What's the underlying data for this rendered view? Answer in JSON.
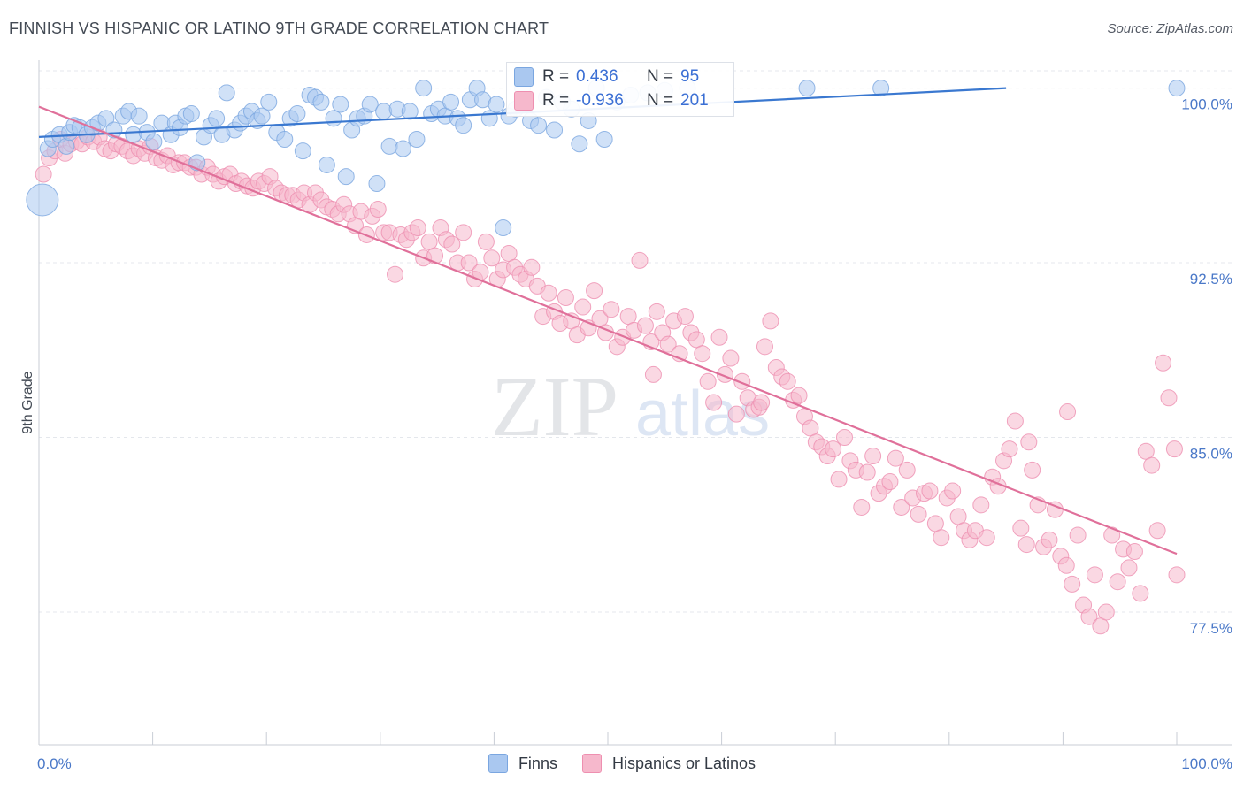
{
  "header": {
    "title": "FINNISH VS HISPANIC OR LATINO 9TH GRADE CORRELATION CHART",
    "source": "Source: ZipAtlas.com"
  },
  "watermark": {
    "zip": "ZIP",
    "atlas": "atlas"
  },
  "colors": {
    "finns_fill": "#aac8f0",
    "finns_stroke": "#7aa6e0",
    "finns_line": "#3a78d0",
    "hisp_fill": "#f6b8cc",
    "hisp_stroke": "#ee8fb0",
    "hisp_line": "#e0709a",
    "tick_text": "#4a78c8",
    "grid": "#e4e7ec"
  },
  "legend": {
    "rows": [
      {
        "r_label": "R =",
        "r_value": "0.436",
        "n_label": "N =",
        "n_value": "95"
      },
      {
        "r_label": "R =",
        "r_value": "-0.936",
        "n_label": "N =",
        "n_value": "201"
      }
    ]
  },
  "bottom_legend": [
    "Finns",
    "Hispanics or Latinos"
  ],
  "chart_data": {
    "type": "scatter",
    "ylabel": "9th Grade",
    "x_ticks": [
      "0.0%",
      "100.0%"
    ],
    "y_ticks": [
      "100.0%",
      "92.5%",
      "85.0%",
      "77.5%"
    ],
    "xlim": [
      0,
      100
    ],
    "ylim": [
      71.8,
      101.2
    ],
    "grid": true,
    "legend_position": "top-center",
    "series": [
      {
        "name": "Finns",
        "trend": {
          "x": [
            0,
            85
          ],
          "y": [
            97.9,
            100.0
          ]
        },
        "points": [
          [
            0.3,
            95.2,
            "L"
          ],
          [
            0.8,
            97.4
          ],
          [
            1.2,
            97.8
          ],
          [
            1.8,
            98.0
          ],
          [
            2.4,
            97.5
          ],
          [
            2.7,
            98.1
          ],
          [
            3.1,
            98.4
          ],
          [
            3.6,
            98.3
          ],
          [
            4.2,
            98.0
          ],
          [
            4.7,
            98.3
          ],
          [
            5.2,
            98.5
          ],
          [
            5.9,
            98.7
          ],
          [
            6.6,
            98.2
          ],
          [
            7.4,
            98.8
          ],
          [
            7.9,
            99.0
          ],
          [
            8.3,
            98.0
          ],
          [
            8.8,
            98.8
          ],
          [
            9.5,
            98.1
          ],
          [
            10.1,
            97.7
          ],
          [
            10.8,
            98.5
          ],
          [
            11.6,
            98.0
          ],
          [
            12.0,
            98.5
          ],
          [
            12.4,
            98.3
          ],
          [
            12.9,
            98.8
          ],
          [
            13.4,
            98.9
          ],
          [
            13.9,
            96.8
          ],
          [
            14.5,
            97.9
          ],
          [
            15.1,
            98.4
          ],
          [
            15.6,
            98.7
          ],
          [
            16.1,
            98.0
          ],
          [
            16.5,
            99.8
          ],
          [
            17.2,
            98.2
          ],
          [
            17.7,
            98.5
          ],
          [
            18.2,
            98.8
          ],
          [
            18.7,
            99.0
          ],
          [
            19.2,
            98.6
          ],
          [
            19.6,
            98.8
          ],
          [
            20.2,
            99.4
          ],
          [
            20.9,
            98.1
          ],
          [
            21.6,
            97.8
          ],
          [
            22.1,
            98.7
          ],
          [
            22.7,
            98.9
          ],
          [
            23.2,
            97.3
          ],
          [
            23.8,
            99.7
          ],
          [
            24.3,
            99.6
          ],
          [
            24.8,
            99.4
          ],
          [
            25.3,
            96.7
          ],
          [
            25.9,
            98.7
          ],
          [
            26.5,
            99.3
          ],
          [
            27.0,
            96.2
          ],
          [
            27.5,
            98.2
          ],
          [
            28.0,
            98.7
          ],
          [
            28.6,
            98.8
          ],
          [
            29.1,
            99.3
          ],
          [
            29.7,
            95.9
          ],
          [
            30.3,
            99.0
          ],
          [
            30.8,
            97.5
          ],
          [
            31.5,
            99.1
          ],
          [
            32.0,
            97.4
          ],
          [
            32.6,
            99.0
          ],
          [
            33.2,
            97.8
          ],
          [
            33.8,
            100.0
          ],
          [
            34.5,
            98.9
          ],
          [
            35.1,
            99.1
          ],
          [
            35.7,
            98.8
          ],
          [
            36.2,
            99.4
          ],
          [
            36.8,
            98.7
          ],
          [
            37.3,
            98.4
          ],
          [
            37.9,
            99.5
          ],
          [
            38.5,
            100.0
          ],
          [
            39.0,
            99.5
          ],
          [
            39.6,
            98.7
          ],
          [
            40.2,
            99.3
          ],
          [
            40.8,
            94.0
          ],
          [
            41.3,
            98.8
          ],
          [
            41.9,
            99.1
          ],
          [
            42.5,
            100.0
          ],
          [
            43.2,
            98.6
          ],
          [
            43.9,
            98.4
          ],
          [
            44.6,
            99.6
          ],
          [
            45.3,
            98.2
          ],
          [
            46.0,
            99.4
          ],
          [
            46.8,
            99.1
          ],
          [
            47.5,
            97.6
          ],
          [
            48.3,
            98.6
          ],
          [
            49.0,
            100.0
          ],
          [
            49.7,
            97.8
          ],
          [
            50.8,
            99.4
          ],
          [
            52.0,
            99.7
          ],
          [
            53.5,
            99.8
          ],
          [
            55.0,
            99.9
          ],
          [
            57.0,
            100.0
          ],
          [
            67.5,
            100.0
          ],
          [
            74.0,
            100.0
          ],
          [
            100.0,
            100.0
          ]
        ]
      },
      {
        "name": "Hispanics or Latinos",
        "trend": {
          "x": [
            0,
            100
          ],
          "y": [
            99.2,
            80.0
          ]
        },
        "points": [
          [
            0.4,
            96.3
          ],
          [
            0.9,
            97.0
          ],
          [
            1.4,
            97.3
          ],
          [
            1.9,
            97.8
          ],
          [
            2.3,
            97.2
          ],
          [
            2.8,
            97.6
          ],
          [
            3.3,
            97.7
          ],
          [
            3.8,
            97.6
          ],
          [
            4.3,
            97.9
          ],
          [
            4.8,
            97.7
          ],
          [
            5.3,
            97.9
          ],
          [
            5.8,
            97.4
          ],
          [
            6.3,
            97.3
          ],
          [
            6.8,
            97.6
          ],
          [
            7.3,
            97.5
          ],
          [
            7.8,
            97.3
          ],
          [
            8.3,
            97.1
          ],
          [
            8.8,
            97.4
          ],
          [
            9.3,
            97.2
          ],
          [
            9.8,
            97.5
          ],
          [
            10.3,
            97.0
          ],
          [
            10.8,
            96.9
          ],
          [
            11.3,
            97.1
          ],
          [
            11.8,
            96.7
          ],
          [
            12.3,
            96.8
          ],
          [
            12.8,
            96.8
          ],
          [
            13.3,
            96.6
          ],
          [
            13.8,
            96.6
          ],
          [
            14.3,
            96.3
          ],
          [
            14.8,
            96.6
          ],
          [
            15.3,
            96.3
          ],
          [
            15.8,
            96.0
          ],
          [
            16.3,
            96.2
          ],
          [
            16.8,
            96.3
          ],
          [
            17.3,
            95.9
          ],
          [
            17.8,
            96.0
          ],
          [
            18.3,
            95.8
          ],
          [
            18.8,
            95.7
          ],
          [
            19.3,
            96.0
          ],
          [
            19.8,
            95.9
          ],
          [
            20.3,
            96.2
          ],
          [
            20.8,
            95.7
          ],
          [
            21.3,
            95.5
          ],
          [
            21.8,
            95.4
          ],
          [
            22.3,
            95.4
          ],
          [
            22.8,
            95.2
          ],
          [
            23.3,
            95.5
          ],
          [
            23.8,
            95.0
          ],
          [
            24.3,
            95.5
          ],
          [
            24.8,
            95.2
          ],
          [
            25.3,
            94.9
          ],
          [
            25.8,
            94.8
          ],
          [
            26.3,
            94.6
          ],
          [
            26.8,
            95.0
          ],
          [
            27.3,
            94.6
          ],
          [
            27.8,
            94.1
          ],
          [
            28.3,
            94.7
          ],
          [
            28.8,
            93.7
          ],
          [
            29.3,
            94.5
          ],
          [
            29.8,
            94.8
          ],
          [
            30.3,
            93.8
          ],
          [
            30.8,
            93.8
          ],
          [
            31.3,
            92.0
          ],
          [
            31.8,
            93.7
          ],
          [
            32.3,
            93.5
          ],
          [
            32.8,
            93.8
          ],
          [
            33.3,
            94.0
          ],
          [
            33.8,
            92.7
          ],
          [
            34.3,
            93.4
          ],
          [
            34.8,
            92.8
          ],
          [
            35.3,
            94.0
          ],
          [
            35.8,
            93.5
          ],
          [
            36.3,
            93.3
          ],
          [
            36.8,
            92.5
          ],
          [
            37.3,
            93.8
          ],
          [
            37.8,
            92.5
          ],
          [
            38.3,
            91.8
          ],
          [
            38.8,
            92.1
          ],
          [
            39.3,
            93.4
          ],
          [
            39.8,
            92.7
          ],
          [
            40.3,
            91.8
          ],
          [
            40.8,
            92.2
          ],
          [
            41.3,
            92.9
          ],
          [
            41.8,
            92.3
          ],
          [
            42.3,
            92.0
          ],
          [
            42.8,
            91.8
          ],
          [
            43.3,
            92.3
          ],
          [
            43.8,
            91.5
          ],
          [
            44.3,
            90.2
          ],
          [
            44.8,
            91.2
          ],
          [
            45.3,
            90.4
          ],
          [
            45.8,
            89.9
          ],
          [
            46.3,
            91.0
          ],
          [
            46.8,
            90.0
          ],
          [
            47.3,
            89.4
          ],
          [
            47.8,
            90.6
          ],
          [
            48.3,
            89.7
          ],
          [
            48.8,
            91.3
          ],
          [
            49.3,
            90.1
          ],
          [
            49.8,
            89.5
          ],
          [
            50.3,
            90.5
          ],
          [
            50.8,
            88.9
          ],
          [
            51.3,
            89.3
          ],
          [
            51.8,
            90.2
          ],
          [
            52.3,
            89.6
          ],
          [
            52.8,
            92.6
          ],
          [
            53.3,
            89.8
          ],
          [
            53.8,
            89.1
          ],
          [
            54.3,
            90.4
          ],
          [
            54.8,
            89.5
          ],
          [
            55.3,
            89.0
          ],
          [
            55.8,
            90.0
          ],
          [
            56.3,
            88.6
          ],
          [
            56.8,
            90.2
          ],
          [
            57.3,
            89.5
          ],
          [
            57.8,
            89.2
          ],
          [
            58.3,
            88.6
          ],
          [
            58.8,
            87.4
          ],
          [
            59.3,
            86.5
          ],
          [
            59.8,
            89.3
          ],
          [
            60.3,
            87.7
          ],
          [
            60.8,
            88.4
          ],
          [
            61.3,
            86.0
          ],
          [
            61.8,
            87.4
          ],
          [
            62.3,
            86.7
          ],
          [
            62.8,
            86.2
          ],
          [
            63.3,
            86.3
          ],
          [
            63.8,
            88.9
          ],
          [
            64.3,
            90.0
          ],
          [
            64.8,
            88.0
          ],
          [
            65.3,
            87.6
          ],
          [
            65.8,
            87.4
          ],
          [
            66.3,
            86.6
          ],
          [
            66.8,
            86.8
          ],
          [
            67.3,
            85.9
          ],
          [
            67.8,
            85.4
          ],
          [
            68.3,
            84.8
          ],
          [
            68.8,
            84.6
          ],
          [
            69.3,
            84.2
          ],
          [
            69.8,
            84.5
          ],
          [
            70.3,
            83.2
          ],
          [
            70.8,
            85.0
          ],
          [
            71.3,
            84.0
          ],
          [
            71.8,
            83.6
          ],
          [
            72.3,
            82.0
          ],
          [
            72.8,
            83.5
          ],
          [
            73.3,
            84.2
          ],
          [
            73.8,
            82.6
          ],
          [
            74.3,
            82.9
          ],
          [
            74.8,
            83.1
          ],
          [
            75.3,
            84.1
          ],
          [
            75.8,
            82.0
          ],
          [
            76.3,
            83.6
          ],
          [
            76.8,
            82.4
          ],
          [
            77.3,
            81.7
          ],
          [
            77.8,
            82.6
          ],
          [
            78.3,
            82.7
          ],
          [
            78.8,
            81.3
          ],
          [
            79.3,
            80.7
          ],
          [
            79.8,
            82.4
          ],
          [
            80.3,
            82.7
          ],
          [
            80.8,
            81.6
          ],
          [
            81.3,
            81.0
          ],
          [
            81.8,
            80.6
          ],
          [
            82.3,
            81.0
          ],
          [
            82.8,
            82.1
          ],
          [
            83.3,
            80.7
          ],
          [
            83.8,
            83.3
          ],
          [
            84.3,
            82.9
          ],
          [
            84.8,
            84.0
          ],
          [
            85.3,
            84.5
          ],
          [
            85.8,
            85.7
          ],
          [
            86.3,
            81.1
          ],
          [
            86.8,
            80.4
          ],
          [
            87.3,
            83.6
          ],
          [
            87.8,
            82.1
          ],
          [
            88.3,
            80.3
          ],
          [
            88.8,
            80.6
          ],
          [
            89.3,
            81.9
          ],
          [
            89.8,
            79.9
          ],
          [
            90.3,
            79.5
          ],
          [
            90.8,
            78.7
          ],
          [
            91.3,
            80.8
          ],
          [
            91.8,
            77.8
          ],
          [
            92.3,
            77.3
          ],
          [
            92.8,
            79.1
          ],
          [
            93.3,
            76.9
          ],
          [
            93.8,
            77.5
          ],
          [
            94.3,
            80.8
          ],
          [
            94.8,
            78.8
          ],
          [
            95.3,
            80.2
          ],
          [
            95.8,
            79.4
          ],
          [
            96.3,
            80.1
          ],
          [
            96.8,
            78.3
          ],
          [
            97.3,
            84.4
          ],
          [
            97.8,
            83.8
          ],
          [
            98.3,
            81.0
          ],
          [
            98.8,
            88.2
          ],
          [
            99.3,
            86.7
          ],
          [
            99.8,
            84.5
          ],
          [
            100.0,
            79.1
          ],
          [
            63.5,
            86.5
          ],
          [
            54.0,
            87.7
          ],
          [
            87.0,
            84.8
          ],
          [
            90.4,
            86.1
          ]
        ]
      }
    ]
  }
}
